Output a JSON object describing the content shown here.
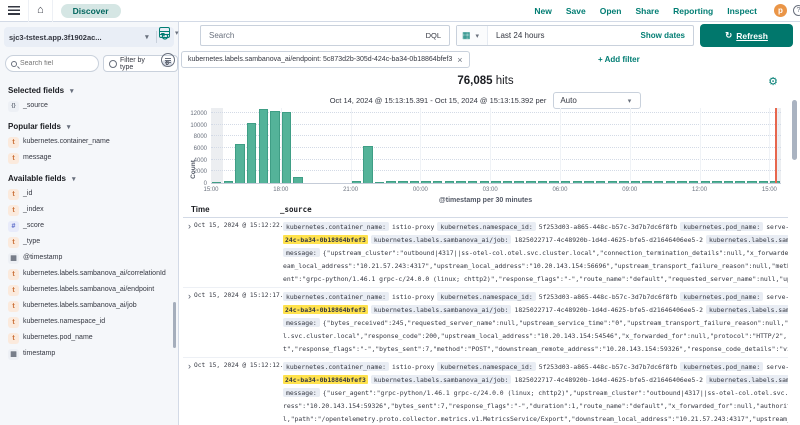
{
  "topbar": {
    "breadcrumb": "Discover",
    "nav": [
      "New",
      "Save",
      "Open",
      "Share",
      "Reporting",
      "Inspect"
    ],
    "avatar": "p",
    "help": "?"
  },
  "querybar": {
    "index_pattern": "sjc3-tstest.app.3f1902ac...",
    "search_placeholder": "Search",
    "language": "DQL",
    "time_range": "Last 24 hours",
    "show_dates_label": "Show dates",
    "refresh_label": "Refresh"
  },
  "filters": {
    "pill_text": "kubernetes.labels.sambanova_ai/endpoint: 5c873d2b-305d-424c-ba34-0b18864bfef3",
    "remove": "×",
    "add_label": "+ Add filter"
  },
  "sidebar": {
    "search_placeholder": "Search fiel",
    "filter_by_type": "Filter by type",
    "filter_count": "0",
    "sections": [
      {
        "title": "Selected fields",
        "fields": [
          {
            "icon": "src",
            "name": "_source"
          }
        ]
      },
      {
        "title": "Popular fields",
        "fields": [
          {
            "icon": "t",
            "name": "kubernetes.container_name"
          },
          {
            "icon": "t",
            "name": "message"
          }
        ]
      },
      {
        "title": "Available fields",
        "fields": [
          {
            "icon": "t",
            "name": "_id"
          },
          {
            "icon": "t",
            "name": "_index"
          },
          {
            "icon": "num",
            "name": "_score"
          },
          {
            "icon": "t",
            "name": "_type"
          },
          {
            "icon": "cal",
            "name": "@timestamp"
          },
          {
            "icon": "t",
            "name": "kubernetes.labels.sambanova_ai/correlationId"
          },
          {
            "icon": "t",
            "name": "kubernetes.labels.sambanova_ai/endpoint"
          },
          {
            "icon": "t",
            "name": "kubernetes.labels.sambanova_ai/job"
          },
          {
            "icon": "t",
            "name": "kubernetes.namespace_id"
          },
          {
            "icon": "t",
            "name": "kubernetes.pod_name"
          },
          {
            "icon": "cal",
            "name": "timestamp"
          }
        ]
      }
    ]
  },
  "hits": {
    "count": "76,085",
    "label": "hits",
    "range": "Oct 14, 2024 @ 15:13:15.391 - Oct 15, 2024 @ 15:13:15.392 per",
    "interval": "Auto"
  },
  "chart_data": {
    "type": "bar",
    "title": "76,085 hits",
    "xlabel": "@timestamp per 30 minutes",
    "ylabel": "Count",
    "ylim": [
      0,
      13000
    ],
    "yticks": [
      0,
      2000,
      4000,
      6000,
      8000,
      10000,
      12000
    ],
    "xticks": [
      {
        "slot": 0,
        "label": "15:00"
      },
      {
        "slot": 6,
        "label": "18:00"
      },
      {
        "slot": 12,
        "label": "21:00"
      },
      {
        "slot": 18,
        "label": "00:00"
      },
      {
        "slot": 24,
        "label": "03:00"
      },
      {
        "slot": 30,
        "label": "06:00"
      },
      {
        "slot": 36,
        "label": "09:00"
      },
      {
        "slot": 42,
        "label": "12:00"
      },
      {
        "slot": 48,
        "label": "15:00"
      }
    ],
    "bucket_interval": "30 minutes",
    "time_range": "Oct 14, 2024 @ 15:13:15.391 - Oct 15, 2024 @ 15:13:15.392",
    "values": [
      200,
      300,
      6600,
      10300,
      12600,
      12400,
      12200,
      1100,
      0,
      0,
      0,
      0,
      300,
      6300,
      250,
      300,
      300,
      300,
      300,
      300,
      300,
      300,
      300,
      300,
      300,
      300,
      300,
      300,
      300,
      300,
      300,
      300,
      300,
      300,
      300,
      300,
      300,
      300,
      300,
      300,
      300,
      300,
      300,
      300,
      300,
      300,
      300,
      300,
      300
    ],
    "current_time_marker_slot": 48.5,
    "partial_bucket_bands_slots": [
      [
        0,
        1
      ],
      [
        48.5,
        49.5
      ]
    ],
    "bar_color": "#54B399",
    "marker_color": "#E7664C",
    "grid": true,
    "legend": false
  },
  "table": {
    "columns": [
      "Time",
      "_source"
    ],
    "rows": [
      {
        "time": "Oct 15, 2024 @ 15:12:22.482",
        "lines": [
          [
            {
              "k": "badge",
              "v": "kubernetes.container_name:"
            },
            {
              "k": "text",
              "v": "istio-proxy"
            },
            {
              "k": "badge",
              "v": "kubernetes.namespace_id:"
            },
            {
              "k": "text",
              "v": "5f253d03-a865-448c-b57c-3d7b7dc6f8fb"
            },
            {
              "k": "badge",
              "v": "kubernetes.pod_name:"
            },
            {
              "k": "text",
              "v": "serve-1825022"
            }
          ],
          [
            {
              "k": "hl",
              "v": "24c-ba34-0b18864bfef3"
            },
            {
              "k": "badge",
              "v": "kubernetes.labels.sambanova_ai/job:"
            },
            {
              "k": "text",
              "v": "1825022717-4c48920b-1d4d-4625-bfe5-d21646406ee5-2"
            },
            {
              "k": "badge",
              "v": "kubernetes.labels.sambanova"
            }
          ],
          [
            {
              "k": "badge",
              "v": "message:"
            },
            {
              "k": "text",
              "v": "{\"upstream_cluster\":\"outbound|4317||ss-otel-col.otel.svc.cluster.local\",\"connection_termination_details\":null,\"x_forwarded_for\""
            }
          ],
          [
            {
              "k": "text",
              "v": "eam_local_address\":\"10.21.57.243:4317\",\"upstream_local_address\":\"10.20.143.154:56696\",\"upstream_transport_failure_reason\":null,\"method\":\""
            }
          ],
          [
            {
              "k": "text",
              "v": "ent\":\"grpc-python/1.46.1 grpc-c/24.0.0 (linux; chttp2)\",\"response_flags\":\"-\",\"route_name\":\"default\",\"requested_server_name\":null,\"upstrea"
            }
          ]
        ]
      },
      {
        "time": "Oct 15, 2024 @ 15:12:17.480",
        "lines": [
          [
            {
              "k": "badge",
              "v": "kubernetes.container_name:"
            },
            {
              "k": "text",
              "v": "istio-proxy"
            },
            {
              "k": "badge",
              "v": "kubernetes.namespace_id:"
            },
            {
              "k": "text",
              "v": "5f253d03-a865-448c-b57c-3d7b7dc6f8fb"
            },
            {
              "k": "badge",
              "v": "kubernetes.pod_name:"
            },
            {
              "k": "text",
              "v": "serve-1825022"
            }
          ],
          [
            {
              "k": "hl",
              "v": "24c-ba34-0b18864bfef3"
            },
            {
              "k": "badge",
              "v": "kubernetes.labels.sambanova_ai/job:"
            },
            {
              "k": "text",
              "v": "1825022717-4c48920b-1d4d-4625-bfe5-d21646406ee5-2"
            },
            {
              "k": "badge",
              "v": "kubernetes.labels.sambanova"
            }
          ],
          [
            {
              "k": "badge",
              "v": "message:"
            },
            {
              "k": "text",
              "v": "{\"bytes_received\":245,\"requested_server_name\":null,\"upstream_service_time\":\"0\",\"upstream_transport_failure_reason\":null,\"user_a"
            }
          ],
          [
            {
              "k": "text",
              "v": "l.svc.cluster.local\",\"response_code\":200,\"upstream_local_address\":\"10.20.143.154:54546\",\"x_forwarded_for\":null,\"protocol\":\"HTTP/2\",\"start"
            }
          ],
          [
            {
              "k": "text",
              "v": "t\",\"response_flags\":\"-\",\"bytes_sent\":7,\"method\":\"POST\",\"downstream_remote_address\":\"10.20.143.154:59326\",\"response_code_details\":\"via_ups"
            }
          ]
        ]
      },
      {
        "time": "Oct 15, 2024 @ 15:12:12.479",
        "lines": [
          [
            {
              "k": "badge",
              "v": "kubernetes.container_name:"
            },
            {
              "k": "text",
              "v": "istio-proxy"
            },
            {
              "k": "badge",
              "v": "kubernetes.namespace_id:"
            },
            {
              "k": "text",
              "v": "5f253d03-a865-448c-b57c-3d7b7dc6f8fb"
            },
            {
              "k": "badge",
              "v": "kubernetes.pod_name:"
            },
            {
              "k": "text",
              "v": "serve-1825022"
            }
          ],
          [
            {
              "k": "hl",
              "v": "24c-ba34-0b18864bfef3"
            },
            {
              "k": "badge",
              "v": "kubernetes.labels.sambanova_ai/job:"
            },
            {
              "k": "text",
              "v": "1825022717-4c48920b-1d4d-4625-bfe5-d21646406ee5-2"
            },
            {
              "k": "badge",
              "v": "kubernetes.labels.sambanova"
            }
          ],
          [
            {
              "k": "badge",
              "v": "message:"
            },
            {
              "k": "text",
              "v": "{\"user_agent\":\"grpc-python/1.46.1 grpc-c/24.0.0 (linux; chttp2)\",\"upstream_cluster\":\"outbound|4317||ss-otel-col.otel.svc.cluste"
            }
          ],
          [
            {
              "k": "text",
              "v": "ress\":\"10.20.143.154:59326\",\"bytes_sent\":7,\"response_flags\":\"-\",\"duration\":1,\"route_name\":\"default\",\"x_forwarded_for\":null,\"authority\":\"s"
            }
          ],
          [
            {
              "k": "text",
              "v": "l,\"path\":\"/opentelemetry.proto.collector.metrics.v1.MetricsService/Export\",\"downstream_local_address\":\"10.21.57.243:4317\",\"upstream_servi"
            }
          ]
        ]
      }
    ]
  }
}
